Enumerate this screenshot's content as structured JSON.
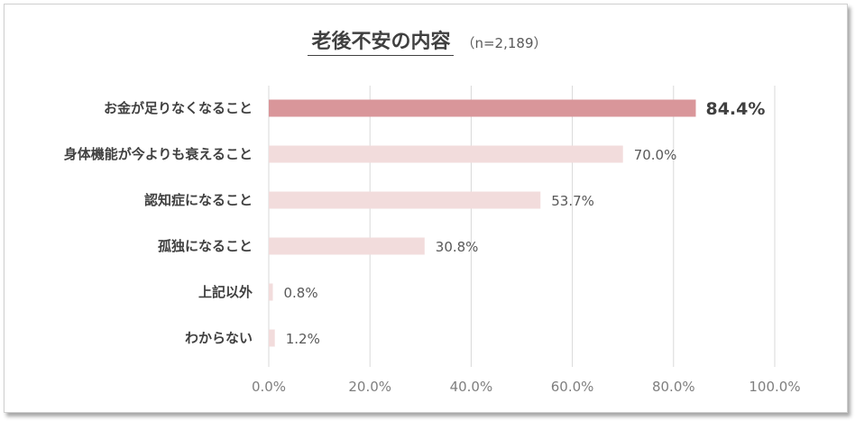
{
  "header": {
    "title": "老後不安の内容",
    "subtitle": "（n=2,189）"
  },
  "colors": {
    "highlight_bar": "#d9969a",
    "bar": "#f2dcdc",
    "grid": "#d9d9d9"
  },
  "chart_data": {
    "type": "bar",
    "orientation": "horizontal",
    "title": "老後不安の内容",
    "subtitle": "（n=2,189）",
    "categories": [
      "お金が足りなくなること",
      "身体機能が今よりも衰えること",
      "認知症になること",
      "孤独になること",
      "上記以外",
      "わからない"
    ],
    "values": [
      84.4,
      70.0,
      53.7,
      30.8,
      0.8,
      1.2
    ],
    "value_labels": [
      "84.4%",
      "70.0%",
      "53.7%",
      "30.8%",
      "0.8%",
      "1.2%"
    ],
    "highlight_index": 0,
    "xlim": [
      0,
      100
    ],
    "xticks": [
      0,
      20,
      40,
      60,
      80,
      100
    ],
    "xtick_labels": [
      "0.0%",
      "20.0%",
      "40.0%",
      "60.0%",
      "80.0%",
      "100.0%"
    ],
    "grid": true,
    "legend": "none"
  }
}
